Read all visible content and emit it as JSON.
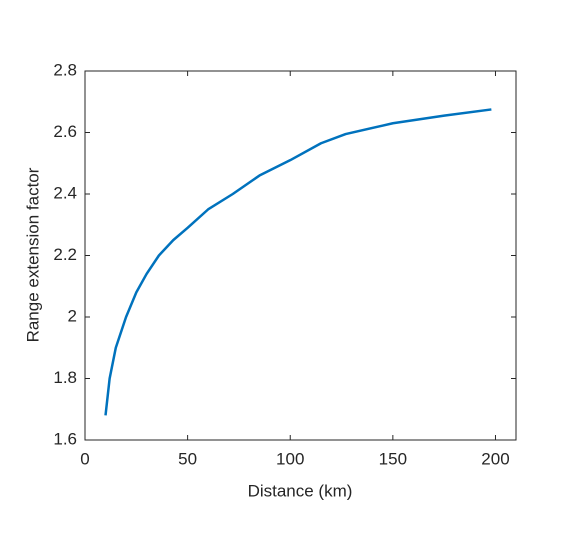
{
  "chart_data": {
    "type": "line",
    "x_label": "Distance (km)",
    "y_label": "Range extension factor",
    "x": [
      10,
      12,
      15,
      20,
      25,
      30,
      36,
      43,
      50,
      60,
      72,
      85,
      100,
      115,
      127,
      150,
      175,
      198
    ],
    "series": [
      {
        "color": "#0072bd",
        "values": [
          1.68,
          1.8,
          1.9,
          2.0,
          2.08,
          2.14,
          2.2,
          2.25,
          2.29,
          2.35,
          2.4,
          2.46,
          2.51,
          2.565,
          2.595,
          2.63,
          2.655,
          2.675
        ]
      }
    ],
    "xlim": [
      0,
      210
    ],
    "ylim": [
      1.6,
      2.8
    ],
    "xticks": [
      0,
      50,
      100,
      150,
      200
    ],
    "yticks": [
      1.6,
      1.8,
      2,
      2.2,
      2.4,
      2.6,
      2.8
    ],
    "grid": false
  }
}
